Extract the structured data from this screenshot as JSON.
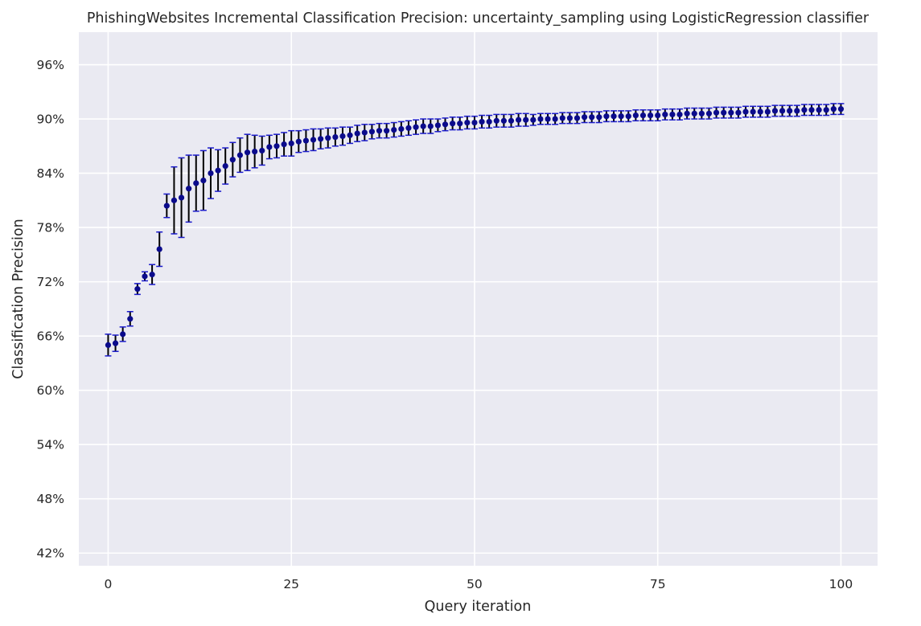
{
  "chart_data": {
    "type": "scatter",
    "title": "PhishingWebsites Incremental Classification Precision: uncertainty_sampling using LogisticRegression classifier",
    "xlabel": "Query iteration",
    "ylabel": "Classification Precision",
    "xlim": [
      -4,
      105
    ],
    "ylim": [
      40.6,
      99.6
    ],
    "xticks": [
      0,
      25,
      50,
      75,
      100
    ],
    "yticks": [
      42,
      48,
      54,
      60,
      66,
      72,
      78,
      84,
      90,
      96
    ],
    "ytick_suffix": "%",
    "grid": true,
    "colors": {
      "background": "#eaeaf2",
      "grid": "#ffffff",
      "point": "#0b0b8c",
      "error_bar": "#000000",
      "cap": "#1a1acc",
      "text": "#262626"
    },
    "series": [
      {
        "x": [
          0,
          1,
          2,
          3,
          4,
          5,
          6,
          7,
          8,
          9,
          10,
          11,
          12,
          13,
          14,
          15,
          16,
          17,
          18,
          19,
          20,
          21,
          22,
          23,
          24,
          25,
          26,
          27,
          28,
          29,
          30,
          31,
          32,
          33,
          34,
          35,
          36,
          37,
          38,
          39,
          40,
          41,
          42,
          43,
          44,
          45,
          46,
          47,
          48,
          49,
          50,
          51,
          52,
          53,
          54,
          55,
          56,
          57,
          58,
          59,
          60,
          61,
          62,
          63,
          64,
          65,
          66,
          67,
          68,
          69,
          70,
          71,
          72,
          73,
          74,
          75,
          76,
          77,
          78,
          79,
          80,
          81,
          82,
          83,
          84,
          85,
          86,
          87,
          88,
          89,
          90,
          91,
          92,
          93,
          94,
          95,
          96,
          97,
          98,
          99,
          100
        ],
        "y": [
          65.0,
          65.2,
          66.2,
          67.9,
          71.2,
          72.6,
          72.8,
          75.6,
          80.4,
          81.0,
          81.3,
          82.3,
          82.9,
          83.2,
          84.0,
          84.3,
          84.8,
          85.5,
          86.0,
          86.3,
          86.4,
          86.5,
          86.9,
          87.0,
          87.2,
          87.3,
          87.5,
          87.6,
          87.7,
          87.8,
          87.9,
          88.0,
          88.1,
          88.2,
          88.4,
          88.5,
          88.6,
          88.7,
          88.7,
          88.8,
          88.9,
          89.0,
          89.1,
          89.2,
          89.2,
          89.3,
          89.4,
          89.5,
          89.5,
          89.6,
          89.6,
          89.7,
          89.7,
          89.8,
          89.8,
          89.8,
          89.9,
          89.9,
          89.9,
          90.0,
          90.0,
          90.0,
          90.1,
          90.1,
          90.1,
          90.2,
          90.2,
          90.2,
          90.3,
          90.3,
          90.3,
          90.3,
          90.4,
          90.4,
          90.4,
          90.4,
          90.5,
          90.5,
          90.5,
          90.6,
          90.6,
          90.6,
          90.6,
          90.7,
          90.7,
          90.7,
          90.7,
          90.8,
          90.8,
          90.8,
          90.8,
          90.9,
          90.9,
          90.9,
          90.9,
          91.0,
          91.0,
          91.0,
          91.0,
          91.1,
          91.1
        ],
        "yerr": [
          1.2,
          0.9,
          0.8,
          0.8,
          0.6,
          0.5,
          1.1,
          1.9,
          1.3,
          3.7,
          4.4,
          3.7,
          3.1,
          3.3,
          2.8,
          2.3,
          2.0,
          1.9,
          1.9,
          2.0,
          1.8,
          1.6,
          1.3,
          1.3,
          1.3,
          1.4,
          1.2,
          1.2,
          1.2,
          1.1,
          1.1,
          1.0,
          1.0,
          0.9,
          0.9,
          0.9,
          0.8,
          0.8,
          0.8,
          0.8,
          0.8,
          0.8,
          0.8,
          0.8,
          0.8,
          0.7,
          0.7,
          0.7,
          0.7,
          0.7,
          0.7,
          0.7,
          0.7,
          0.7,
          0.7,
          0.7,
          0.7,
          0.7,
          0.6,
          0.6,
          0.6,
          0.6,
          0.6,
          0.6,
          0.6,
          0.6,
          0.6,
          0.6,
          0.6,
          0.6,
          0.6,
          0.6,
          0.6,
          0.6,
          0.6,
          0.6,
          0.6,
          0.6,
          0.6,
          0.6,
          0.6,
          0.6,
          0.6,
          0.6,
          0.6,
          0.6,
          0.6,
          0.6,
          0.6,
          0.6,
          0.6,
          0.6,
          0.6,
          0.6,
          0.6,
          0.6,
          0.6,
          0.6,
          0.6,
          0.6,
          0.6
        ]
      }
    ]
  }
}
